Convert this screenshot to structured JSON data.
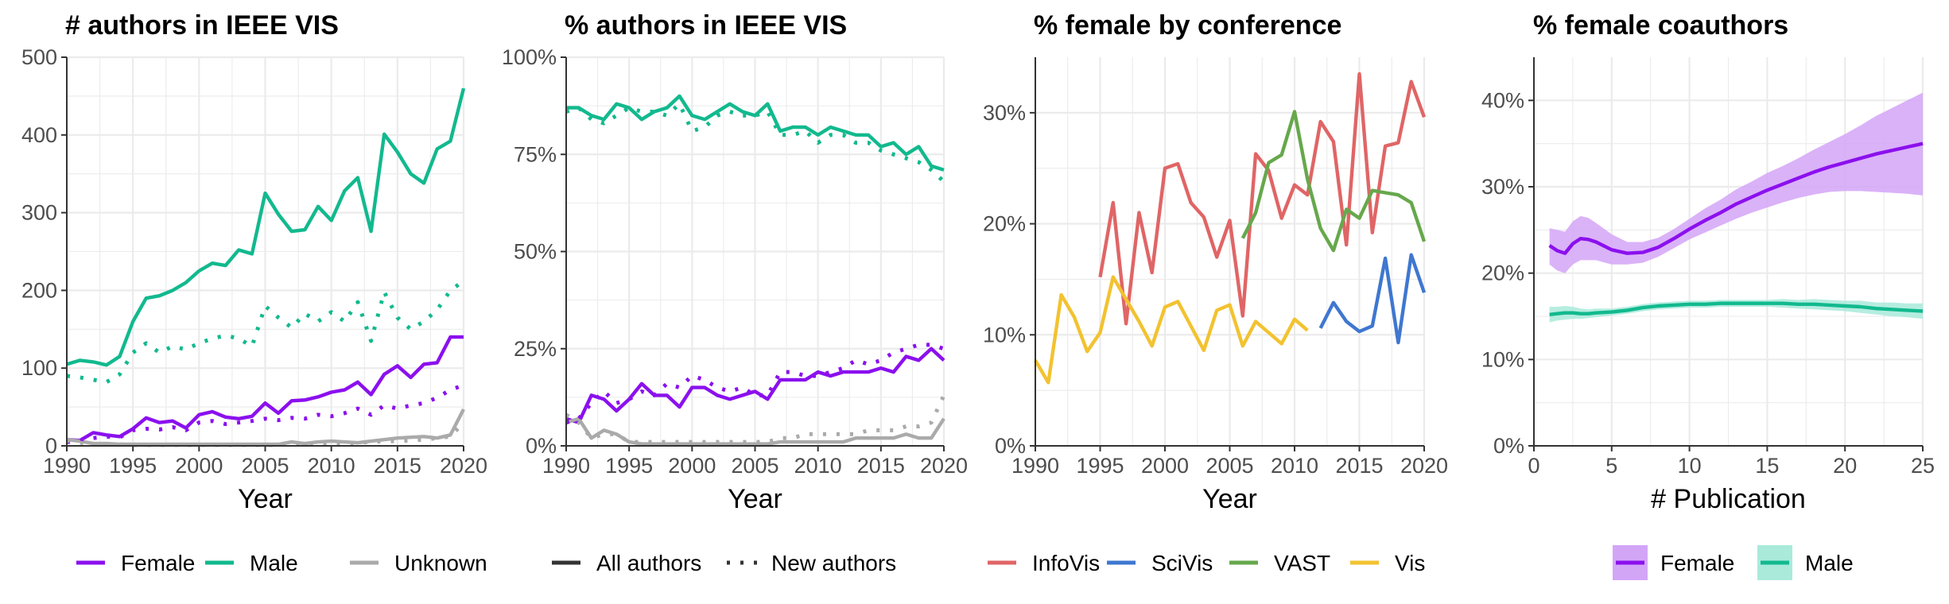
{
  "colors": {
    "female": "#8b10ee",
    "male": "#12b98e",
    "unknown": "#aaaaaa",
    "infovis": "#e06566",
    "scivis": "#3f77d0",
    "vast": "#66a84c",
    "vis": "#f2c230",
    "female_ribbon": "#d3a5f7",
    "male_ribbon": "#a9eadb",
    "grid": "#ebebeb",
    "axis": "#333333"
  },
  "chart_data": [
    {
      "type": "line",
      "title": "# authors in IEEE VIS",
      "xlabel": "Year",
      "ylabel": "",
      "xlim": [
        1990,
        2020
      ],
      "ylim": [
        0,
        500
      ],
      "xticks": [
        1990,
        1995,
        2000,
        2005,
        2010,
        2015,
        2020
      ],
      "yticks": [
        0,
        100,
        200,
        300,
        400,
        500
      ],
      "ytick_labels": [
        "0",
        "100",
        "200",
        "300",
        "400",
        "500"
      ],
      "legend_position": "bottom",
      "legend": [
        {
          "label": "Female",
          "color_key": "female",
          "style": "solid"
        },
        {
          "label": "Male",
          "color_key": "male",
          "style": "solid"
        },
        {
          "label": "Unknown",
          "color_key": "unknown",
          "style": "solid"
        }
      ],
      "x": [
        1990,
        1991,
        1992,
        1993,
        1994,
        1995,
        1996,
        1997,
        1998,
        1999,
        2000,
        2001,
        2002,
        2003,
        2004,
        2005,
        2006,
        2007,
        2008,
        2009,
        2010,
        2011,
        2012,
        2013,
        2014,
        2015,
        2016,
        2017,
        2018,
        2019,
        2020
      ],
      "series": [
        {
          "name": "Female",
          "color_key": "female",
          "style": "solid",
          "values": [
            8,
            7,
            17,
            14,
            12,
            22,
            36,
            30,
            32,
            23,
            40,
            44,
            37,
            35,
            38,
            55,
            42,
            58,
            59,
            63,
            69,
            72,
            82,
            66,
            92,
            103,
            88,
            105,
            107,
            140,
            140
          ]
        },
        {
          "name": "Male",
          "color_key": "male",
          "style": "solid",
          "values": [
            105,
            110,
            108,
            104,
            115,
            160,
            190,
            193,
            200,
            210,
            225,
            235,
            232,
            252,
            247,
            325,
            298,
            276,
            278,
            308,
            290,
            328,
            345,
            276,
            401,
            378,
            350,
            338,
            382,
            392,
            460
          ]
        },
        {
          "name": "Unknown",
          "color_key": "unknown",
          "style": "solid",
          "values": [
            8,
            6,
            3,
            3,
            2,
            2,
            2,
            2,
            2,
            2,
            2,
            2,
            2,
            2,
            2,
            2,
            2,
            5,
            3,
            5,
            6,
            5,
            4,
            6,
            8,
            10,
            11,
            12,
            10,
            14,
            47
          ]
        },
        {
          "name": "Female",
          "color_key": "female",
          "style": "dotted",
          "values": [
            5,
            6,
            10,
            12,
            11,
            20,
            22,
            21,
            24,
            20,
            30,
            32,
            28,
            30,
            32,
            35,
            33,
            36,
            35,
            40,
            38,
            42,
            48,
            40,
            52,
            48,
            52,
            55,
            62,
            72,
            78
          ]
        },
        {
          "name": "Male",
          "color_key": "male",
          "style": "dotted",
          "values": [
            90,
            88,
            85,
            82,
            92,
            120,
            132,
            120,
            128,
            124,
            132,
            138,
            142,
            138,
            128,
            180,
            165,
            152,
            170,
            160,
            172,
            160,
            185,
            135,
            198,
            165,
            150,
            160,
            175,
            200,
            212
          ]
        },
        {
          "name": "Unknown",
          "color_key": "unknown",
          "style": "dotted",
          "values": [
            7,
            4,
            2,
            2,
            2,
            1,
            1,
            1,
            1,
            1,
            1,
            1,
            1,
            1,
            1,
            1,
            1,
            2,
            2,
            3,
            3,
            3,
            4,
            5,
            6,
            6,
            7,
            8,
            10,
            12,
            30
          ]
        }
      ]
    },
    {
      "type": "line",
      "title": "% authors in IEEE VIS",
      "xlabel": "Year",
      "ylabel": "",
      "xlim": [
        1990,
        2020
      ],
      "ylim": [
        0,
        100
      ],
      "xticks": [
        1990,
        1995,
        2000,
        2005,
        2010,
        2015,
        2020
      ],
      "yticks": [
        0,
        25,
        50,
        75,
        100
      ],
      "ytick_labels": [
        "0%",
        "25%",
        "50%",
        "75%",
        "100%"
      ],
      "legend_position": "bottom",
      "legend": [
        {
          "label": "All authors",
          "color_key": "axis",
          "style": "solid"
        },
        {
          "label": "New authors",
          "color_key": "axis",
          "style": "dotted"
        }
      ],
      "x": [
        1990,
        1991,
        1992,
        1993,
        1994,
        1995,
        1996,
        1997,
        1998,
        1999,
        2000,
        2001,
        2002,
        2003,
        2004,
        2005,
        2006,
        2007,
        2008,
        2009,
        2010,
        2011,
        2012,
        2013,
        2014,
        2015,
        2016,
        2017,
        2018,
        2019,
        2020
      ],
      "series": [
        {
          "name": "Male",
          "color_key": "male",
          "style": "solid",
          "values": [
            87,
            87,
            85,
            84,
            88,
            87,
            84,
            86,
            87,
            90,
            85,
            84,
            86,
            88,
            86,
            85,
            88,
            81,
            82,
            82,
            80,
            82,
            81,
            80,
            80,
            77,
            78,
            75,
            77,
            72,
            71
          ]
        },
        {
          "name": "Female",
          "color_key": "female",
          "style": "solid",
          "values": [
            7,
            6,
            13,
            12,
            9,
            12,
            16,
            13,
            13,
            10,
            15,
            15,
            13,
            12,
            13,
            14,
            12,
            17,
            17,
            17,
            19,
            18,
            19,
            19,
            19,
            20,
            19,
            23,
            22,
            25,
            22
          ]
        },
        {
          "name": "Unknown",
          "color_key": "unknown",
          "style": "solid",
          "values": [
            6,
            7,
            2,
            4,
            3,
            1,
            0.5,
            0.5,
            0.5,
            0.5,
            0.5,
            0.5,
            0.5,
            0.5,
            0.5,
            0.5,
            0.5,
            1,
            1,
            1,
            1,
            1,
            1,
            2,
            2,
            2,
            2,
            3,
            2,
            2,
            7
          ]
        },
        {
          "name": "Male",
          "color_key": "male",
          "style": "dotted",
          "values": [
            86,
            87,
            84,
            83,
            85,
            87,
            86,
            86,
            85,
            88,
            81,
            82,
            85,
            86,
            85,
            85,
            86,
            80,
            80,
            81,
            78,
            80,
            80,
            78,
            78,
            76,
            75,
            74,
            73,
            71,
            68
          ]
        },
        {
          "name": "Female",
          "color_key": "female",
          "style": "dotted",
          "values": [
            6,
            7,
            11,
            14,
            11,
            12,
            14,
            13,
            16,
            15,
            18,
            17,
            15,
            14,
            15,
            13,
            13,
            19,
            19,
            18,
            18,
            19,
            20,
            22,
            21,
            22,
            24,
            25,
            26,
            26,
            25
          ]
        },
        {
          "name": "Unknown",
          "color_key": "unknown",
          "style": "dotted",
          "values": [
            8,
            6,
            2,
            3,
            3,
            1,
            1,
            1,
            1,
            1,
            1,
            1,
            1,
            1,
            1,
            1,
            1,
            2,
            2,
            3,
            3,
            3,
            3,
            3,
            4,
            4,
            4,
            5,
            5,
            6,
            13
          ]
        }
      ]
    },
    {
      "type": "line",
      "title": "% female by conference",
      "xlabel": "Year",
      "ylabel": "",
      "xlim": [
        1990,
        2020
      ],
      "ylim": [
        0,
        35
      ],
      "xticks": [
        1990,
        1995,
        2000,
        2005,
        2010,
        2015,
        2020
      ],
      "yticks": [
        0,
        10,
        20,
        30
      ],
      "ytick_labels": [
        "0%",
        "10%",
        "20%",
        "30%"
      ],
      "legend_position": "bottom",
      "legend": [
        {
          "label": "InfoVis",
          "color_key": "infovis",
          "style": "solid"
        },
        {
          "label": "SciVis",
          "color_key": "scivis",
          "style": "solid"
        },
        {
          "label": "VAST",
          "color_key": "vast",
          "style": "solid"
        },
        {
          "label": "Vis",
          "color_key": "vis",
          "style": "solid"
        }
      ],
      "series": [
        {
          "name": "InfoVis",
          "color_key": "infovis",
          "style": "solid",
          "x": [
            1995,
            1996,
            1997,
            1998,
            1999,
            2000,
            2001,
            2002,
            2003,
            2004,
            2005,
            2006,
            2007,
            2008,
            2009,
            2010,
            2011,
            2012,
            2013,
            2014,
            2015,
            2016,
            2017,
            2018,
            2019,
            2020
          ],
          "values": [
            15.2,
            21.9,
            11.0,
            21.0,
            15.6,
            25.0,
            25.4,
            21.9,
            20.6,
            17.0,
            20.3,
            11.7,
            26.3,
            24.8,
            20.5,
            23.5,
            22.6,
            29.2,
            27.4,
            18.1,
            33.5,
            19.2,
            27.0,
            27.3,
            32.8,
            29.6
          ]
        },
        {
          "name": "SciVis",
          "color_key": "scivis",
          "style": "solid",
          "x": [
            2012,
            2013,
            2014,
            2015,
            2016,
            2017,
            2018,
            2019,
            2020
          ],
          "values": [
            10.6,
            12.9,
            11.2,
            10.3,
            10.8,
            16.9,
            9.3,
            17.2,
            13.8
          ]
        },
        {
          "name": "VAST",
          "color_key": "vast",
          "style": "solid",
          "x": [
            2006,
            2007,
            2008,
            2009,
            2010,
            2011,
            2012,
            2013,
            2014,
            2015,
            2016,
            2017,
            2018,
            2019,
            2020
          ],
          "values": [
            18.7,
            21.0,
            25.5,
            26.2,
            30.1,
            24.0,
            19.6,
            17.6,
            21.3,
            20.5,
            23.0,
            22.8,
            22.6,
            21.9,
            18.4
          ]
        },
        {
          "name": "Vis",
          "color_key": "vis",
          "style": "solid",
          "x": [
            1990,
            1991,
            1992,
            1993,
            1994,
            1995,
            1996,
            1997,
            1998,
            1999,
            2000,
            2001,
            2002,
            2003,
            2004,
            2005,
            2006,
            2007,
            2008,
            2009,
            2010,
            2011
          ],
          "values": [
            7.7,
            5.7,
            13.6,
            11.6,
            8.5,
            10.2,
            15.2,
            13.2,
            11.2,
            9.0,
            12.5,
            13.0,
            10.8,
            8.6,
            12.2,
            12.7,
            9.0,
            11.2,
            10.2,
            9.2,
            11.4,
            10.4
          ]
        }
      ]
    },
    {
      "type": "line",
      "title": "% female coauthors",
      "xlabel": "# Publication",
      "ylabel": "",
      "xlim": [
        0,
        25
      ],
      "ylim": [
        0,
        45
      ],
      "xticks": [
        0,
        5,
        10,
        15,
        20,
        25
      ],
      "yticks": [
        0,
        10,
        20,
        30,
        40
      ],
      "ytick_labels": [
        "0%",
        "10%",
        "20%",
        "30%",
        "40%"
      ],
      "legend_position": "bottom",
      "legend": [
        {
          "label": "Female",
          "color_key": "female",
          "style": "solid",
          "ribbon_key": "female_ribbon"
        },
        {
          "label": "Male",
          "color_key": "male",
          "style": "solid",
          "ribbon_key": "male_ribbon"
        }
      ],
      "x": [
        1,
        1.5,
        2,
        2.5,
        3,
        3.5,
        4,
        5,
        6,
        7,
        8,
        9,
        10,
        11,
        12,
        13,
        14,
        15,
        16,
        17,
        18,
        19,
        20,
        21,
        22,
        23,
        24,
        25
      ],
      "series": [
        {
          "name": "Female",
          "color_key": "female",
          "ribbon_key": "female_ribbon",
          "style": "solid",
          "values": [
            23.2,
            22.6,
            22.3,
            23.4,
            24.0,
            23.9,
            23.6,
            22.7,
            22.3,
            22.4,
            23.0,
            24.0,
            25.1,
            26.1,
            27.0,
            28.0,
            28.8,
            29.6,
            30.3,
            31.0,
            31.7,
            32.3,
            32.8,
            33.3,
            33.8,
            34.2,
            34.6,
            35.0
          ],
          "lower": [
            21.0,
            20.3,
            20.0,
            21.0,
            21.5,
            21.5,
            21.5,
            21.0,
            21.0,
            21.2,
            21.9,
            22.9,
            23.9,
            24.7,
            25.5,
            26.3,
            27.0,
            27.6,
            28.2,
            28.7,
            29.1,
            29.4,
            29.5,
            29.5,
            29.4,
            29.3,
            29.2,
            29.0
          ],
          "upper": [
            25.2,
            25.0,
            24.8,
            26.0,
            26.6,
            26.4,
            25.8,
            24.5,
            23.6,
            23.6,
            24.1,
            25.1,
            26.3,
            27.5,
            28.5,
            29.7,
            30.6,
            31.6,
            32.4,
            33.3,
            34.3,
            35.2,
            36.1,
            37.1,
            38.2,
            39.1,
            40.0,
            40.9
          ]
        },
        {
          "name": "Male",
          "color_key": "male",
          "ribbon_key": "male_ribbon",
          "style": "solid",
          "values": [
            15.2,
            15.3,
            15.4,
            15.4,
            15.3,
            15.3,
            15.4,
            15.5,
            15.7,
            16.0,
            16.2,
            16.3,
            16.4,
            16.4,
            16.5,
            16.5,
            16.5,
            16.5,
            16.5,
            16.4,
            16.4,
            16.3,
            16.2,
            16.1,
            15.9,
            15.8,
            15.7,
            15.6
          ],
          "lower": [
            14.3,
            14.5,
            14.6,
            14.7,
            14.7,
            14.8,
            14.9,
            15.1,
            15.3,
            15.6,
            15.8,
            15.9,
            16.0,
            16.0,
            16.1,
            16.1,
            16.1,
            16.1,
            16.0,
            15.9,
            15.8,
            15.7,
            15.6,
            15.4,
            15.2,
            15.0,
            14.9,
            14.7
          ],
          "upper": [
            16.1,
            16.1,
            16.2,
            16.1,
            15.9,
            15.8,
            15.9,
            15.9,
            16.1,
            16.4,
            16.6,
            16.7,
            16.8,
            16.8,
            16.9,
            16.9,
            16.9,
            16.9,
            17.0,
            16.9,
            17.0,
            16.9,
            16.8,
            16.8,
            16.6,
            16.6,
            16.5,
            16.5
          ]
        }
      ]
    }
  ]
}
